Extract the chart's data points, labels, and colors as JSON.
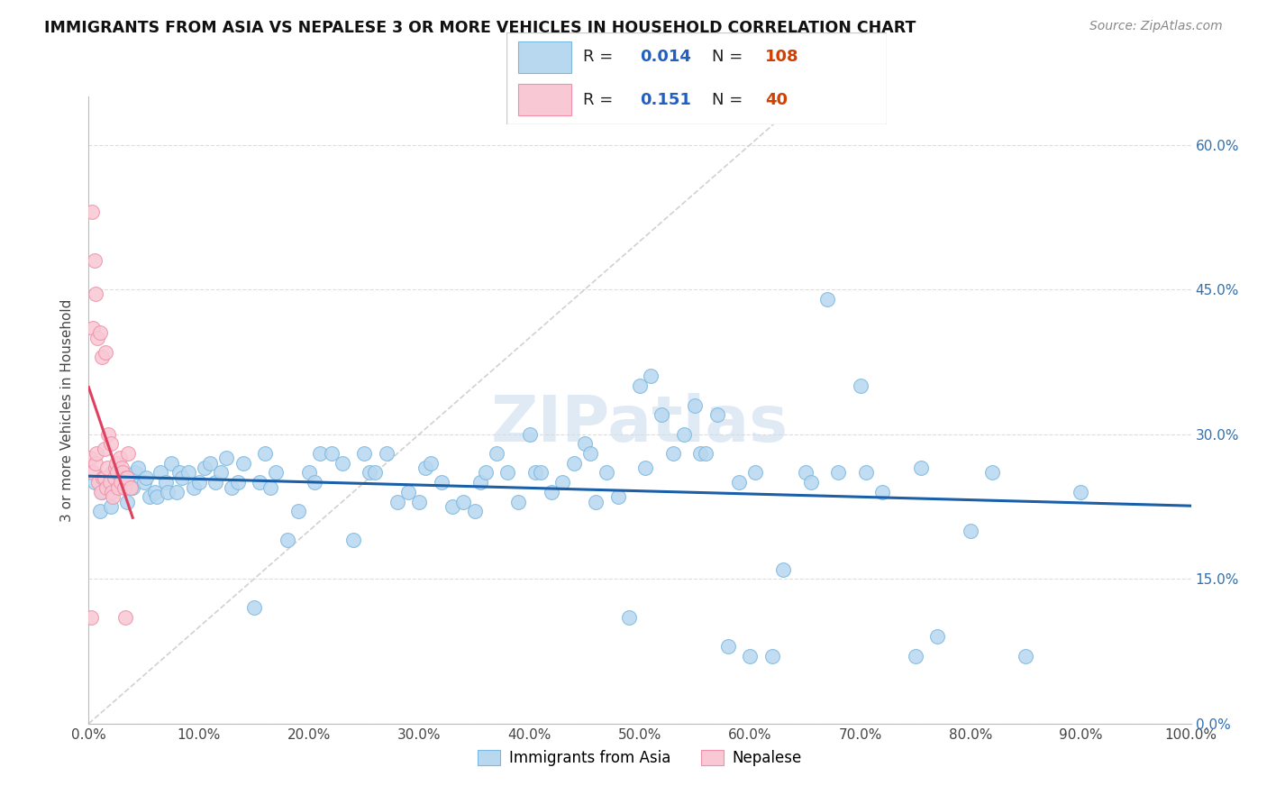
{
  "title": "IMMIGRANTS FROM ASIA VS NEPALESE 3 OR MORE VEHICLES IN HOUSEHOLD CORRELATION CHART",
  "source": "Source: ZipAtlas.com",
  "ylabel": "3 or more Vehicles in Household",
  "xlim": [
    0.0,
    100.0
  ],
  "ylim": [
    0.0,
    65.0
  ],
  "blue_edge": "#7ab8e0",
  "blue_fill": "#b8d8f0",
  "pink_edge": "#f090a8",
  "pink_fill": "#f8c8d4",
  "trend_blue": "#1a5fa8",
  "trend_pink": "#e04060",
  "diagonal_color": "#cccccc",
  "watermark_color": "#ccdded",
  "R_blue": 0.014,
  "N_blue": 108,
  "R_pink": 0.151,
  "N_pink": 40,
  "blue_x": [
    0.5,
    1.0,
    1.2,
    2.0,
    2.1,
    2.5,
    3.0,
    3.2,
    3.5,
    4.0,
    4.2,
    4.5,
    5.0,
    5.2,
    5.5,
    6.0,
    6.2,
    6.5,
    7.0,
    7.2,
    7.5,
    8.0,
    8.2,
    8.5,
    9.0,
    9.5,
    10.0,
    10.5,
    11.0,
    11.5,
    12.0,
    12.5,
    13.0,
    13.5,
    14.0,
    15.0,
    15.5,
    16.0,
    16.5,
    17.0,
    18.0,
    19.0,
    20.0,
    20.5,
    21.0,
    22.0,
    23.0,
    24.0,
    25.0,
    25.5,
    26.0,
    27.0,
    28.0,
    29.0,
    30.0,
    30.5,
    31.0,
    32.0,
    33.0,
    34.0,
    35.0,
    35.5,
    36.0,
    37.0,
    38.0,
    39.0,
    40.0,
    40.5,
    41.0,
    42.0,
    43.0,
    44.0,
    45.0,
    45.5,
    46.0,
    47.0,
    48.0,
    49.0,
    50.0,
    50.5,
    51.0,
    52.0,
    53.0,
    54.0,
    55.0,
    55.5,
    56.0,
    57.0,
    58.0,
    59.0,
    60.0,
    60.5,
    62.0,
    63.0,
    65.0,
    67.0,
    68.0,
    70.0,
    72.0,
    75.0,
    77.0,
    80.0,
    82.0,
    85.0,
    90.0,
    65.5,
    70.5,
    75.5
  ],
  "blue_y": [
    25.0,
    22.0,
    24.0,
    22.5,
    26.0,
    26.0,
    25.5,
    25.0,
    23.0,
    24.5,
    26.0,
    26.5,
    25.0,
    25.5,
    23.5,
    24.0,
    23.5,
    26.0,
    25.0,
    24.0,
    27.0,
    24.0,
    26.0,
    25.5,
    26.0,
    24.5,
    25.0,
    26.5,
    27.0,
    25.0,
    26.0,
    27.5,
    24.5,
    25.0,
    27.0,
    12.0,
    25.0,
    28.0,
    24.5,
    26.0,
    19.0,
    22.0,
    26.0,
    25.0,
    28.0,
    28.0,
    27.0,
    19.0,
    28.0,
    26.0,
    26.0,
    28.0,
    23.0,
    24.0,
    23.0,
    26.5,
    27.0,
    25.0,
    22.5,
    23.0,
    22.0,
    25.0,
    26.0,
    28.0,
    26.0,
    23.0,
    30.0,
    26.0,
    26.0,
    24.0,
    25.0,
    27.0,
    29.0,
    28.0,
    23.0,
    26.0,
    23.5,
    11.0,
    35.0,
    26.5,
    36.0,
    32.0,
    28.0,
    30.0,
    33.0,
    28.0,
    28.0,
    32.0,
    8.0,
    25.0,
    7.0,
    26.0,
    7.0,
    16.0,
    26.0,
    44.0,
    26.0,
    35.0,
    24.0,
    7.0,
    9.0,
    20.0,
    26.0,
    7.0,
    24.0,
    25.0,
    26.0,
    26.5
  ],
  "pink_x": [
    0.1,
    0.2,
    0.3,
    0.35,
    0.4,
    0.5,
    0.6,
    0.65,
    0.7,
    0.8,
    0.9,
    1.0,
    1.1,
    1.2,
    1.3,
    1.4,
    1.45,
    1.5,
    1.6,
    1.7,
    1.8,
    1.9,
    2.0,
    2.1,
    2.2,
    2.3,
    2.4,
    2.5,
    2.6,
    2.7,
    2.8,
    2.9,
    3.0,
    3.1,
    3.2,
    3.3,
    3.4,
    3.5,
    3.6,
    3.8
  ],
  "pink_y": [
    27.5,
    11.0,
    53.0,
    41.0,
    26.0,
    48.0,
    27.0,
    44.5,
    28.0,
    40.0,
    25.0,
    40.5,
    24.0,
    38.0,
    25.5,
    28.5,
    25.5,
    38.5,
    24.5,
    26.5,
    30.0,
    25.0,
    29.0,
    24.0,
    23.5,
    25.5,
    26.5,
    27.0,
    26.0,
    24.5,
    27.5,
    25.0,
    26.5,
    26.0,
    24.5,
    11.0,
    25.5,
    25.5,
    28.0,
    24.5
  ]
}
